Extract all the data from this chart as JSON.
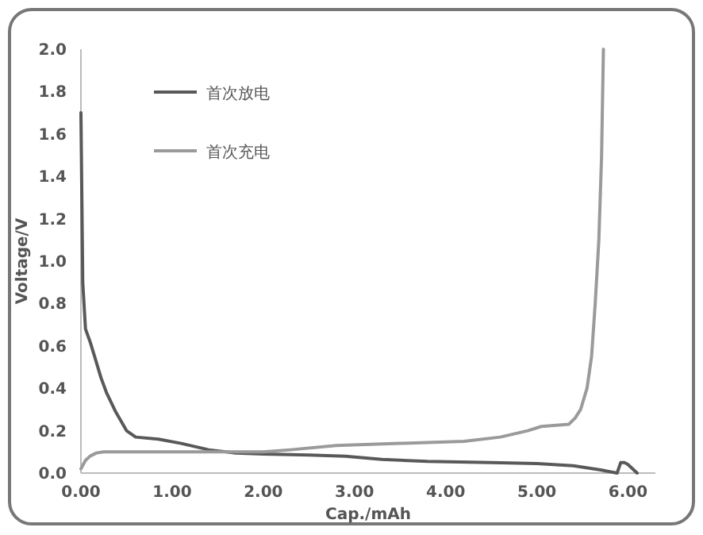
{
  "chart_data": {
    "type": "line",
    "xlabel": "Cap./mAh",
    "ylabel": "Voltage/V",
    "legend": "top left",
    "marker": "none",
    "line_style": "solid",
    "xlim": [
      0,
      6.3
    ],
    "xticks": [
      {
        "value": 0,
        "label": "0.00"
      },
      {
        "value": 1,
        "label": "1.00"
      },
      {
        "value": 2,
        "label": "2.00"
      },
      {
        "value": 3,
        "label": "3.00"
      },
      {
        "value": 4,
        "label": "4.00"
      },
      {
        "value": 5,
        "label": "5.00"
      },
      {
        "value": 6,
        "label": "6.00"
      }
    ],
    "ylim": [
      0,
      2
    ],
    "yticks": [
      {
        "value": 0,
        "label": "0.0"
      },
      {
        "value": 0.2,
        "label": "0.2"
      },
      {
        "value": 0.4,
        "label": "0.4"
      },
      {
        "value": 0.6,
        "label": "0.6"
      },
      {
        "value": 0.8,
        "label": "0.8"
      },
      {
        "value": 1,
        "label": "1.0"
      },
      {
        "value": 1.2,
        "label": "1.2"
      },
      {
        "value": 1.4,
        "label": "1.4"
      },
      {
        "value": 1.6,
        "label": "1.6"
      },
      {
        "value": 1.8,
        "label": "1.8"
      },
      {
        "value": 2,
        "label": "2.0"
      }
    ],
    "series": [
      {
        "name": "首次放电",
        "color": "#595959",
        "x": [
          0,
          0.02,
          0.05,
          0.1,
          0.15,
          0.22,
          0.28,
          0.38,
          0.5,
          0.6,
          0.85,
          1.1,
          1.4,
          1.7,
          2.0,
          2.5,
          2.9,
          3.3,
          3.8,
          4.5,
          5.0,
          5.4,
          5.7,
          5.88,
          5.92,
          5.96,
          6.0,
          6.1
        ],
        "values": [
          1.7,
          0.9,
          0.68,
          0.62,
          0.55,
          0.45,
          0.38,
          0.29,
          0.2,
          0.17,
          0.16,
          0.14,
          0.11,
          0.095,
          0.09,
          0.085,
          0.08,
          0.065,
          0.055,
          0.05,
          0.045,
          0.035,
          0.015,
          0.0,
          0.05,
          0.05,
          0.04,
          0.0
        ]
      },
      {
        "name": "首次充电",
        "color": "#9a9a9a",
        "x": [
          0,
          0.05,
          0.1,
          0.17,
          0.25,
          0.5,
          1.0,
          1.5,
          2.0,
          2.3,
          2.8,
          3.5,
          4.2,
          4.6,
          4.9,
          5.05,
          5.35,
          5.42,
          5.48,
          5.55,
          5.6,
          5.64,
          5.68,
          5.71,
          5.73
        ],
        "values": [
          0.02,
          0.06,
          0.08,
          0.095,
          0.1,
          0.1,
          0.1,
          0.1,
          0.1,
          0.11,
          0.13,
          0.14,
          0.15,
          0.17,
          0.2,
          0.22,
          0.23,
          0.26,
          0.3,
          0.4,
          0.55,
          0.8,
          1.1,
          1.5,
          2.0
        ]
      }
    ]
  }
}
